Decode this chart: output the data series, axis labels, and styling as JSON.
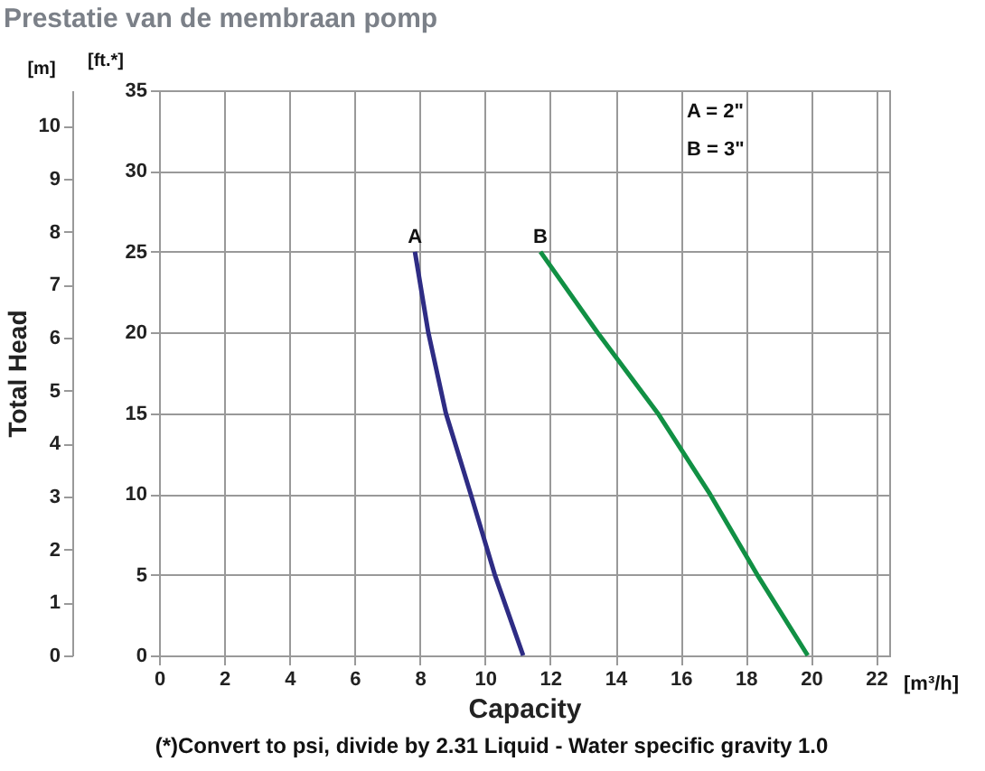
{
  "chart_data": {
    "type": "line",
    "title": "Prestatie van de membraan pomp",
    "xlabel": "Capacity",
    "ylabel": "[ft.*]",
    "y2label": "Total Head",
    "series": [
      {
        "name": "A",
        "color": "#2e2c84",
        "x": [
          7.85,
          8.26,
          8.8,
          9.56,
          10.3,
          11.17
        ],
        "values": [
          25,
          20,
          15,
          10,
          5,
          0
        ]
      },
      {
        "name": "B",
        "color": "#119044",
        "x": [
          11.7,
          13.45,
          15.3,
          16.9,
          18.35,
          19.9
        ],
        "values": [
          25,
          20,
          15,
          10,
          5,
          0
        ]
      }
    ],
    "xlim": [
      0,
      22.4
    ],
    "xticks": [
      0,
      2,
      4,
      6,
      8,
      10,
      12,
      14,
      16,
      18,
      20,
      22
    ],
    "ylim": [
      0,
      35
    ],
    "yticks": [
      0,
      5,
      10,
      15,
      20,
      25,
      30,
      35
    ],
    "y2lim": [
      0,
      10.67
    ],
    "y2ticks": [
      0,
      1,
      2,
      3,
      4,
      5,
      6,
      7,
      8,
      9,
      10
    ],
    "grid": true,
    "marker": "none",
    "line_style": "solid",
    "annotations": [
      "A = 2\"",
      "B = 3\"",
      "[m]",
      "[m³/h]",
      "(*)Convert to psi, divide by 2.31     Liquid - Water specific gravity 1.0"
    ]
  }
}
